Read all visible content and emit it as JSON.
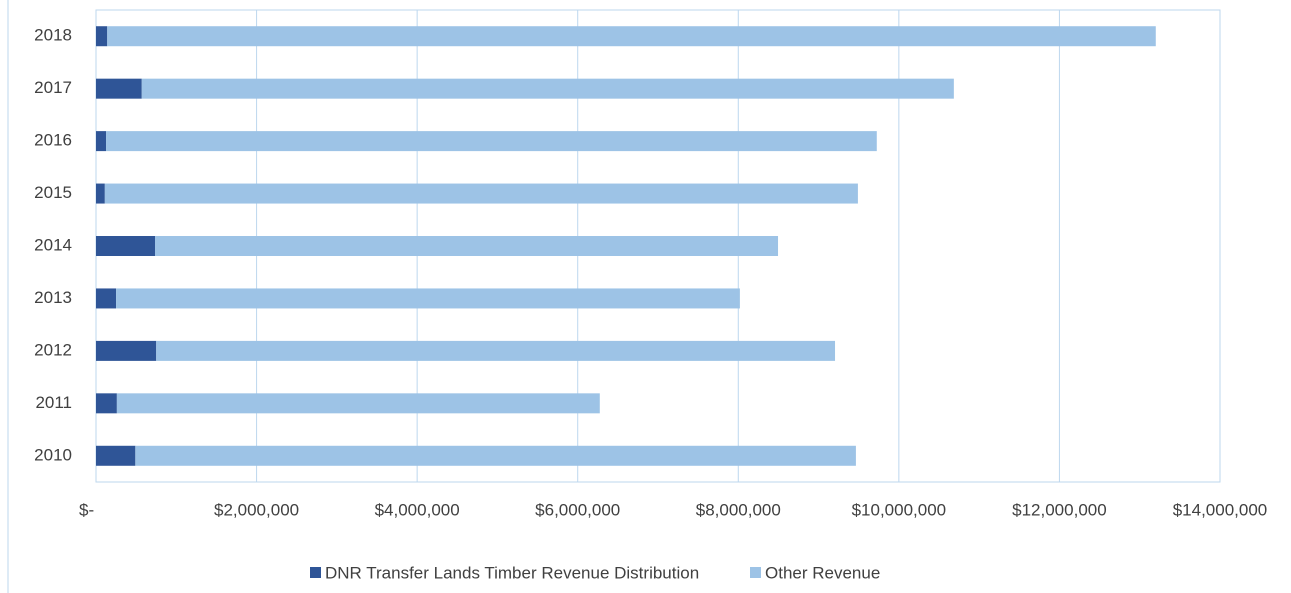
{
  "chart_data": {
    "type": "bar",
    "orientation": "horizontal",
    "stacked": true,
    "categories": [
      "2018",
      "2017",
      "2016",
      "2015",
      "2014",
      "2013",
      "2012",
      "2011",
      "2010"
    ],
    "series": [
      {
        "name": "DNR Transfer Lands Timber Revenue Distribution",
        "color": "#2f5597",
        "values": [
          140000,
          570000,
          125000,
          110000,
          735000,
          250000,
          750000,
          260000,
          490000
        ]
      },
      {
        "name": "Other Revenue",
        "color": "#9dc3e6",
        "values": [
          13060000,
          10115000,
          9600000,
          9380000,
          7760000,
          7770000,
          8455000,
          6015000,
          8975000
        ]
      }
    ],
    "xlim": [
      0,
      14000000
    ],
    "xticks": [
      {
        "value": 0,
        "label": "$-"
      },
      {
        "value": 2000000,
        "label": "$2,000,000"
      },
      {
        "value": 4000000,
        "label": "$4,000,000"
      },
      {
        "value": 6000000,
        "label": "$6,000,000"
      },
      {
        "value": 8000000,
        "label": "$8,000,000"
      },
      {
        "value": 10000000,
        "label": "$10,000,000"
      },
      {
        "value": 12000000,
        "label": "$12,000,000"
      },
      {
        "value": 14000000,
        "label": "$14,000,000"
      }
    ],
    "grid": true,
    "legend": "bottom"
  }
}
